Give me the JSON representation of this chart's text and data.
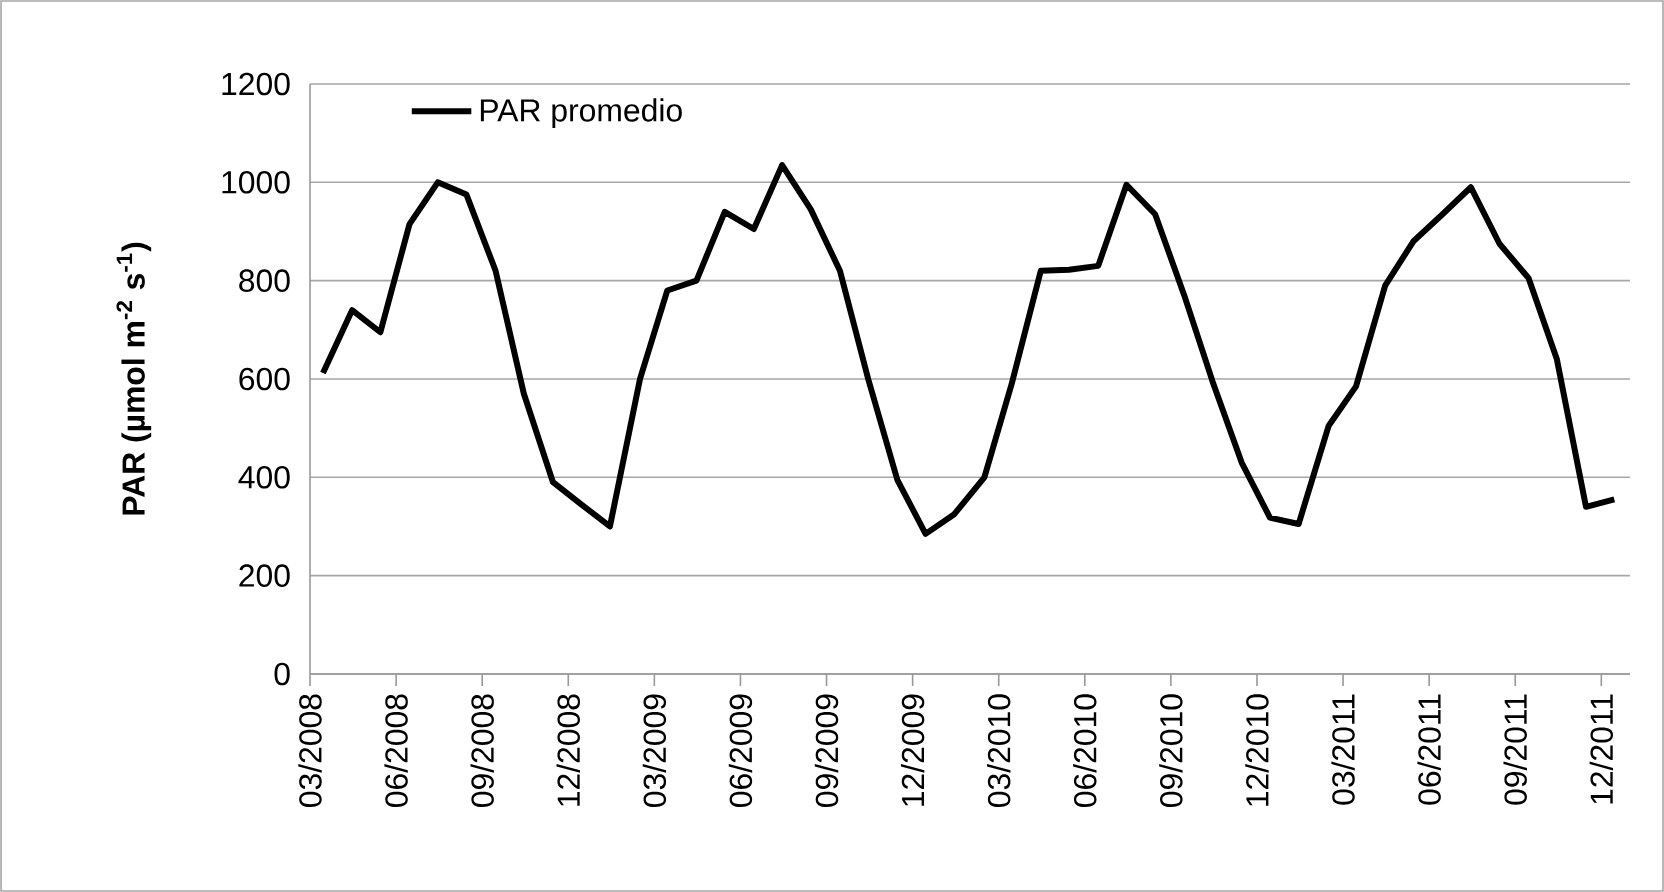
{
  "chart_data": {
    "type": "line",
    "ylabel": "PAR (µmol m$^{-2}$ s$^{-1}$)",
    "x": [
      "2008-03-15",
      "2008-04-15",
      "2008-05-15",
      "2008-06-15",
      "2008-07-15",
      "2008-08-15",
      "2008-09-15",
      "2008-10-15",
      "2008-11-15",
      "2008-12-15",
      "2009-01-15",
      "2009-02-15",
      "2009-03-15",
      "2009-04-15",
      "2009-05-15",
      "2009-06-15",
      "2009-07-15",
      "2009-08-15",
      "2009-09-15",
      "2009-10-15",
      "2009-11-15",
      "2009-12-15",
      "2010-01-15",
      "2010-02-15",
      "2010-03-15",
      "2010-04-15",
      "2010-05-15",
      "2010-06-15",
      "2010-07-15",
      "2010-08-15",
      "2010-09-15",
      "2010-10-15",
      "2010-11-15",
      "2010-12-15",
      "2011-01-15",
      "2011-02-15",
      "2011-03-15",
      "2011-04-15",
      "2011-05-15",
      "2011-06-15",
      "2011-07-15",
      "2011-08-15",
      "2011-09-15",
      "2011-10-15",
      "2011-11-15",
      "2011-12-15"
    ],
    "series": [
      {
        "name": "PAR promedio",
        "color": "#000000",
        "values": [
          612,
          740,
          695,
          915,
          1000,
          975,
          820,
          570,
          390,
          345,
          300,
          600,
          780,
          800,
          940,
          905,
          1035,
          945,
          820,
          600,
          395,
          285,
          325,
          400,
          590,
          820,
          822,
          830,
          995,
          935,
          770,
          595,
          430,
          318,
          305,
          505,
          585,
          790,
          880,
          935,
          990,
          875,
          805,
          640,
          340,
          355
        ]
      }
    ],
    "xlim": [
      "2008-03-01",
      "2012-01-01"
    ],
    "xticks": [
      {
        "value": "2008-03-01",
        "label": "03/2008"
      },
      {
        "value": "2008-06-01",
        "label": "06/2008"
      },
      {
        "value": "2008-09-01",
        "label": "09/2008"
      },
      {
        "value": "2008-12-01",
        "label": "12/2008"
      },
      {
        "value": "2009-03-01",
        "label": "03/2009"
      },
      {
        "value": "2009-06-01",
        "label": "06/2009"
      },
      {
        "value": "2009-09-01",
        "label": "09/2009"
      },
      {
        "value": "2009-12-01",
        "label": "12/2009"
      },
      {
        "value": "2010-03-01",
        "label": "03/2010"
      },
      {
        "value": "2010-06-01",
        "label": "06/2010"
      },
      {
        "value": "2010-09-01",
        "label": "09/2010"
      },
      {
        "value": "2010-12-01",
        "label": "12/2010"
      },
      {
        "value": "2011-03-01",
        "label": "03/2011"
      },
      {
        "value": "2011-06-01",
        "label": "06/2011"
      },
      {
        "value": "2011-09-01",
        "label": "09/2011"
      },
      {
        "value": "2011-12-01",
        "label": "12/2011"
      }
    ],
    "ylim": [
      0,
      1200
    ],
    "yticks": [
      0,
      200,
      400,
      600,
      800,
      1000,
      1200
    ],
    "grid": "y",
    "legend": "top left",
    "marker": "none",
    "line_style": "solid"
  }
}
